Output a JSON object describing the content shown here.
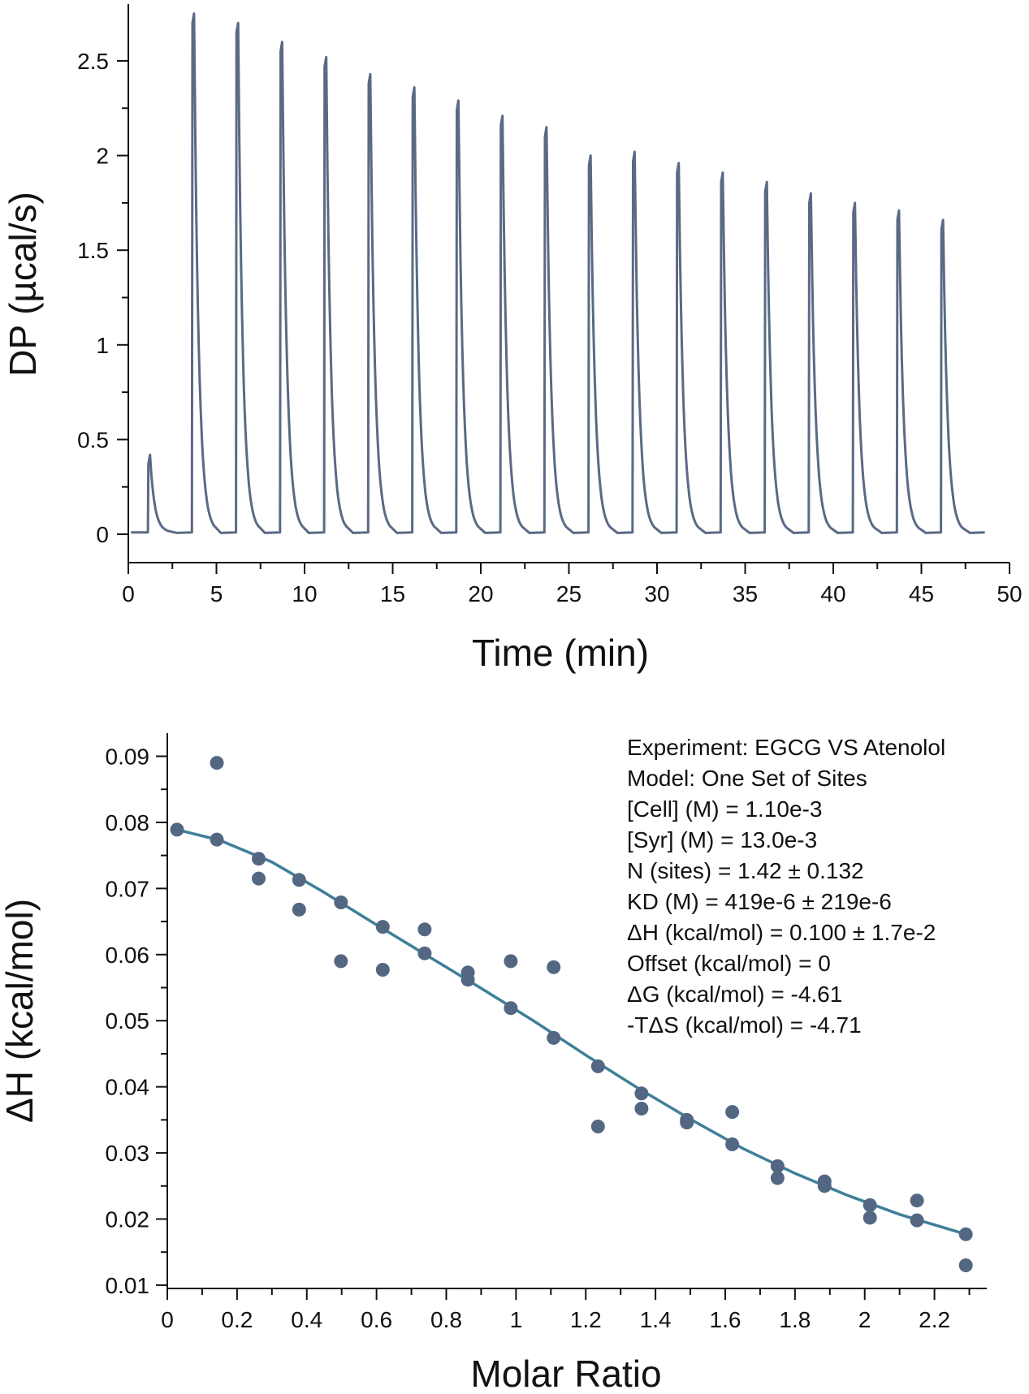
{
  "colors": {
    "trace": "#5a6a85",
    "points": "#536783",
    "fit": "#3f7f99",
    "axis": "#111111"
  },
  "chart_data": [
    {
      "type": "line",
      "title": "",
      "xlabel": "Time (min)",
      "ylabel": "DP (µcal/s)",
      "xlim": [
        0,
        50
      ],
      "ylim": [
        -0.15,
        2.8
      ],
      "xticks": [
        0,
        5,
        10,
        15,
        20,
        25,
        30,
        35,
        40,
        45,
        50
      ],
      "xtick_labels": [
        "0",
        "5",
        "10",
        "15",
        "20",
        "25",
        "30",
        "35",
        "40",
        "45",
        "50"
      ],
      "yticks": [
        0,
        0.5,
        1,
        1.5,
        2,
        2.5
      ],
      "ytick_labels": [
        "0",
        "0.5",
        "1",
        "1.5",
        "2",
        "2.5"
      ],
      "baseline": 0.01,
      "start_time": 0.15,
      "end_time": 48.6,
      "injections": [
        {
          "time": 1.15,
          "peak": 0.42
        },
        {
          "time": 3.65,
          "peak": 2.75
        },
        {
          "time": 6.15,
          "peak": 2.7
        },
        {
          "time": 8.65,
          "peak": 2.6
        },
        {
          "time": 11.15,
          "peak": 2.52
        },
        {
          "time": 13.65,
          "peak": 2.43
        },
        {
          "time": 16.15,
          "peak": 2.36
        },
        {
          "time": 18.65,
          "peak": 2.29
        },
        {
          "time": 21.15,
          "peak": 2.21
        },
        {
          "time": 23.65,
          "peak": 2.15
        },
        {
          "time": 26.15,
          "peak": 2.0
        },
        {
          "time": 28.65,
          "peak": 2.02
        },
        {
          "time": 31.15,
          "peak": 1.96
        },
        {
          "time": 33.65,
          "peak": 1.91
        },
        {
          "time": 36.15,
          "peak": 1.86
        },
        {
          "time": 38.65,
          "peak": 1.8
        },
        {
          "time": 41.15,
          "peak": 1.75
        },
        {
          "time": 43.65,
          "peak": 1.71
        },
        {
          "time": 46.15,
          "peak": 1.66
        }
      ]
    },
    {
      "type": "scatter",
      "title": "",
      "xlabel": "Molar Ratio",
      "ylabel": "ΔH (kcal/mol)",
      "xlim": [
        0,
        2.35
      ],
      "ylim": [
        0.0095,
        0.0935
      ],
      "xticks": [
        0,
        0.2,
        0.4,
        0.6,
        0.8,
        1,
        1.2,
        1.4,
        1.6,
        1.8,
        2,
        2.2
      ],
      "xtick_labels": [
        "0",
        "0.2",
        "0.4",
        "0.6",
        "0.8",
        "1",
        "1.2",
        "1.4",
        "1.6",
        "1.8",
        "2",
        "2.2"
      ],
      "yticks": [
        0.01,
        0.02,
        0.03,
        0.04,
        0.05,
        0.06,
        0.07,
        0.08,
        0.09
      ],
      "ytick_labels": [
        "0.01",
        "0.02",
        "0.03",
        "0.04",
        "0.05",
        "0.06",
        "0.07",
        "0.08",
        "0.09"
      ],
      "series": [
        {
          "name": "data",
          "x": [
            0.028,
            0.142,
            0.142,
            0.262,
            0.262,
            0.378,
            0.378,
            0.498,
            0.498,
            0.618,
            0.618,
            0.738,
            0.738,
            0.862,
            0.862,
            0.985,
            0.985,
            1.108,
            1.108,
            1.235,
            1.235,
            1.36,
            1.36,
            1.49,
            1.49,
            1.62,
            1.62,
            1.75,
            1.75,
            1.885,
            1.885,
            2.015,
            2.015,
            2.15,
            2.15,
            2.29,
            2.29
          ],
          "y": [
            0.0789,
            0.089,
            0.0774,
            0.0745,
            0.0715,
            0.0713,
            0.0668,
            0.0679,
            0.059,
            0.0642,
            0.0577,
            0.0638,
            0.0602,
            0.0573,
            0.0562,
            0.059,
            0.0519,
            0.0581,
            0.0474,
            0.0431,
            0.034,
            0.039,
            0.0367,
            0.035,
            0.0346,
            0.0362,
            0.0313,
            0.028,
            0.0262,
            0.0257,
            0.025,
            0.0221,
            0.0202,
            0.0228,
            0.0198,
            0.0177,
            0.013
          ]
        },
        {
          "name": "fit",
          "type": "line",
          "x": [
            0.028,
            0.15,
            0.3,
            0.45,
            0.6,
            0.75,
            0.9,
            1.05,
            1.2,
            1.35,
            1.5,
            1.65,
            1.8,
            1.95,
            2.1,
            2.29
          ],
          "y": [
            0.0789,
            0.0773,
            0.074,
            0.0694,
            0.0645,
            0.0597,
            0.0549,
            0.05,
            0.0448,
            0.0398,
            0.0351,
            0.0307,
            0.0269,
            0.0236,
            0.0207,
            0.0177
          ]
        }
      ],
      "annotations": [
        "Experiment: EGCG VS Atenolol",
        "Model: One Set of Sites",
        "[Cell] (M) = 1.10e-3",
        "[Syr] (M) = 13.0e-3",
        "N (sites) = 1.42 ± 0.132",
        "KD (M) = 419e-6 ± 219e-6",
        "ΔH (kcal/mol) = 0.100 ± 1.7e-2",
        "Offset (kcal/mol) = 0",
        "ΔG (kcal/mol) = -4.61",
        "-TΔS (kcal/mol) = -4.71"
      ]
    }
  ]
}
